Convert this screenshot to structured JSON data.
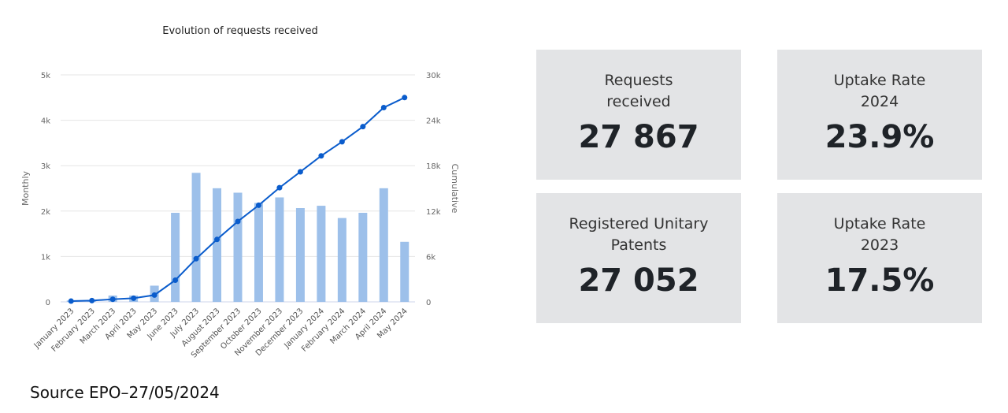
{
  "chart_data": {
    "type": "bar+line",
    "title": "Evolution of requests received",
    "categories": [
      "January 2023",
      "February 2023",
      "March 2023",
      "April 2023",
      "May 2023",
      "June 2023",
      "July 2023",
      "August 2023",
      "September 2023",
      "October 2023",
      "November 2023",
      "December 2023",
      "January 2024",
      "February 2024",
      "March 2024",
      "April 2024",
      "May 2024"
    ],
    "series": [
      {
        "axis": "left",
        "type": "bar",
        "color": "#9dc0ea",
        "values": [
          30,
          30,
          140,
          140,
          357,
          1962,
          2842,
          2503,
          2405,
          2180,
          2301,
          2066,
          2117,
          1847,
          1962,
          2503,
          1323
        ]
      },
      {
        "axis": "right",
        "type": "line",
        "color": "#0a5ccc",
        "values": [
          100,
          170,
          345,
          480,
          900,
          2865,
          5700,
          8250,
          10630,
          12770,
          15090,
          17190,
          19300,
          21160,
          23160,
          25680,
          27000
        ]
      }
    ],
    "ylabel_left": "Monthly",
    "ylabel_right": "Cumulative",
    "yticks_left": [
      "0",
      "1k",
      "2k",
      "3k",
      "4k",
      "5k"
    ],
    "yticks_right": [
      "0",
      "6k",
      "12k",
      "18k",
      "24k",
      "30k"
    ],
    "ylim_left": [
      0,
      5000
    ],
    "ylim_right": [
      0,
      30000
    ],
    "grid": true
  },
  "cards": [
    {
      "label": "Requests received",
      "value": "27 867"
    },
    {
      "label": "Uptake Rate 2024",
      "value": "23.9%"
    },
    {
      "label": "Registered Unitary Patents",
      "value": "27 052"
    },
    {
      "label": "Uptake Rate 2023",
      "value": "17.5%"
    }
  ],
  "source": "Source EPO–27/05/2024"
}
